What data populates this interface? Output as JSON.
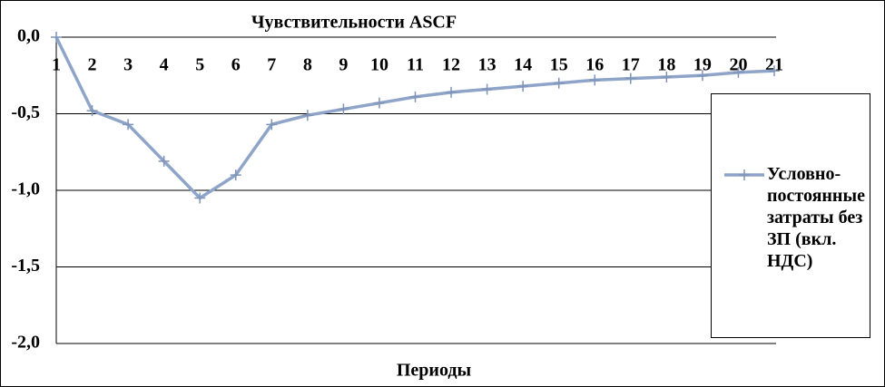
{
  "chart_data": {
    "type": "line",
    "title": "Чувствительности ASCF",
    "x_label": "Периоды",
    "categories": [
      "1",
      "2",
      "3",
      "4",
      "5",
      "6",
      "7",
      "8",
      "9",
      "10",
      "11",
      "12",
      "13",
      "14",
      "15",
      "16",
      "17",
      "18",
      "19",
      "20",
      "21"
    ],
    "series": [
      {
        "name": "Условно-постоянные затраты без ЗП (вкл. НДС)",
        "color": "#8ea4c8",
        "values": [
          0,
          -0.48,
          -0.57,
          -0.81,
          -1.05,
          -0.9,
          -0.57,
          -0.51,
          -0.47,
          -0.43,
          -0.39,
          -0.36,
          -0.34,
          -0.32,
          -0.3,
          -0.28,
          -0.27,
          -0.26,
          -0.25,
          -0.23,
          -0.22
        ]
      }
    ],
    "ylim": [
      -2,
      0
    ],
    "yticks": [
      {
        "value": 0,
        "label": "0,0"
      },
      {
        "value": -0.5,
        "label": "-0,5"
      },
      {
        "value": -1,
        "label": "-1,0"
      },
      {
        "value": -1.5,
        "label": "-1,5"
      },
      {
        "value": -2,
        "label": "-2,0"
      }
    ],
    "grid": true,
    "legend": "right"
  }
}
